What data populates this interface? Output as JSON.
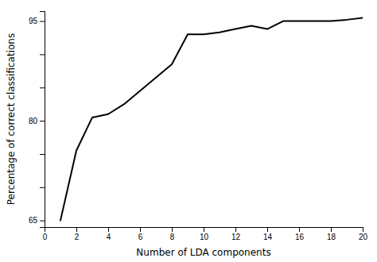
{
  "chart_data": {
    "type": "line",
    "x": [
      1,
      2,
      3,
      4,
      5,
      6,
      7,
      8,
      9,
      10,
      11,
      12,
      13,
      14,
      15,
      16,
      17,
      18,
      19,
      20
    ],
    "values": [
      65.0,
      75.5,
      80.5,
      81.0,
      82.5,
      84.5,
      86.5,
      88.5,
      93.0,
      93.0,
      93.3,
      93.8,
      94.3,
      93.8,
      95.0,
      95.0,
      95.0,
      95.0,
      95.2,
      95.5
    ],
    "color": "#000000",
    "xlabel": "Number of LDA components",
    "ylabel": "Percentage of correct classifications",
    "xlim": [
      0,
      20
    ],
    "ylim": [
      64,
      96.5
    ],
    "xticks": [
      0,
      2,
      4,
      6,
      8,
      10,
      12,
      14,
      16,
      18,
      20
    ],
    "yticks": [
      65,
      {
        "value": 70,
        "label": ""
      },
      {
        "value": 75,
        "label": ""
      },
      80,
      {
        "value": 85,
        "label": ""
      },
      {
        "value": 90,
        "label": ""
      },
      95
    ],
    "grid": false
  }
}
